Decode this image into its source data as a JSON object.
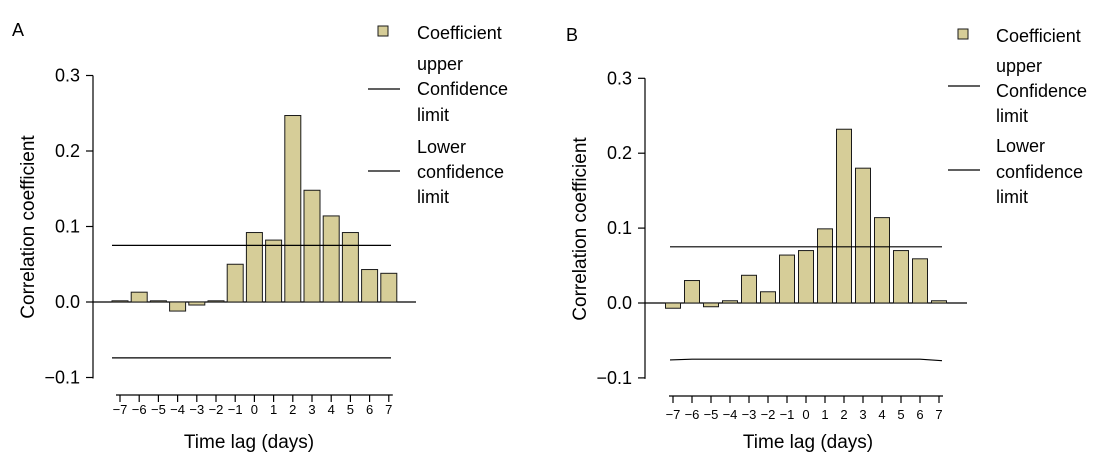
{
  "colors": {
    "bar_fill": "#d6cd98",
    "bar_stroke": "#1a1a1a",
    "line": "#000000"
  },
  "chart_data": [
    {
      "type": "bar",
      "panel_label": "A",
      "xlabel": "Time lag (days)",
      "ylabel": "Correlation coefficient",
      "ylim": [
        -0.13,
        0.33
      ],
      "yticks": [
        "0.3",
        "0.2",
        "0.1",
        "0.0",
        "−0.1"
      ],
      "ytick_values": [
        0.3,
        0.2,
        0.1,
        0.0,
        -0.1
      ],
      "categories": [
        "−7",
        "−6",
        "−5",
        "−4",
        "−3",
        "−2",
        "−1",
        "0",
        "1",
        "2",
        "3",
        "4",
        "5",
        "6",
        "7"
      ],
      "series": [
        {
          "name": "Coefficient",
          "values": [
            0.001,
            0.013,
            0.001,
            -0.012,
            -0.004,
            0.0,
            0.05,
            0.092,
            0.082,
            0.247,
            0.148,
            0.114,
            0.092,
            0.043,
            0.038
          ]
        },
        {
          "name": "upper Confidence limit",
          "values": [
            0.075,
            0.075,
            0.075,
            0.075,
            0.075,
            0.075,
            0.075,
            0.075,
            0.075,
            0.075,
            0.075,
            0.075,
            0.075,
            0.075,
            0.075
          ]
        },
        {
          "name": "Lower confidence limit",
          "values": [
            -0.074,
            -0.074,
            -0.074,
            -0.074,
            -0.074,
            -0.074,
            -0.074,
            -0.074,
            -0.074,
            -0.074,
            -0.074,
            -0.074,
            -0.074,
            -0.074,
            -0.074
          ]
        }
      ],
      "legend": [
        {
          "kind": "swatch",
          "lines": [
            "Coefficient"
          ]
        },
        {
          "kind": "line",
          "lines": [
            "upper",
            "Confidence",
            "limit"
          ]
        },
        {
          "kind": "line",
          "lines": [
            "Lower",
            "confidence",
            "limit"
          ]
        }
      ],
      "legend_position": "top-right"
    },
    {
      "type": "bar",
      "panel_label": "B",
      "xlabel": "Time lag (days)",
      "ylabel": "Correlation coefficient",
      "ylim": [
        -0.13,
        0.33
      ],
      "yticks": [
        "0.3",
        "0.2",
        "0.1",
        "0.0",
        "−0.1"
      ],
      "ytick_values": [
        0.3,
        0.2,
        0.1,
        0.0,
        -0.1
      ],
      "categories": [
        "−7",
        "−6",
        "−5",
        "−4",
        "−3",
        "−2",
        "−1",
        "0",
        "1",
        "2",
        "3",
        "4",
        "5",
        "6",
        "7"
      ],
      "series": [
        {
          "name": "Coefficient",
          "values": [
            -0.007,
            0.03,
            -0.005,
            0.003,
            0.037,
            0.015,
            0.064,
            0.07,
            0.099,
            0.232,
            0.18,
            0.114,
            0.07,
            0.059,
            0.003
          ]
        },
        {
          "name": "upper Confidence limit",
          "values": [
            0.075,
            0.075,
            0.075,
            0.075,
            0.075,
            0.075,
            0.075,
            0.075,
            0.075,
            0.075,
            0.075,
            0.075,
            0.075,
            0.075,
            0.075
          ]
        },
        {
          "name": "Lower confidence limit",
          "values": [
            -0.076,
            -0.075,
            -0.075,
            -0.075,
            -0.075,
            -0.075,
            -0.075,
            -0.075,
            -0.075,
            -0.075,
            -0.075,
            -0.075,
            -0.075,
            -0.075,
            -0.077
          ]
        }
      ],
      "legend": [
        {
          "kind": "swatch",
          "lines": [
            "Coefficient"
          ]
        },
        {
          "kind": "line",
          "lines": [
            "upper",
            "Confidence",
            "limit"
          ]
        },
        {
          "kind": "line",
          "lines": [
            "Lower",
            "confidence",
            "limit"
          ]
        }
      ],
      "legend_position": "top-right"
    }
  ]
}
